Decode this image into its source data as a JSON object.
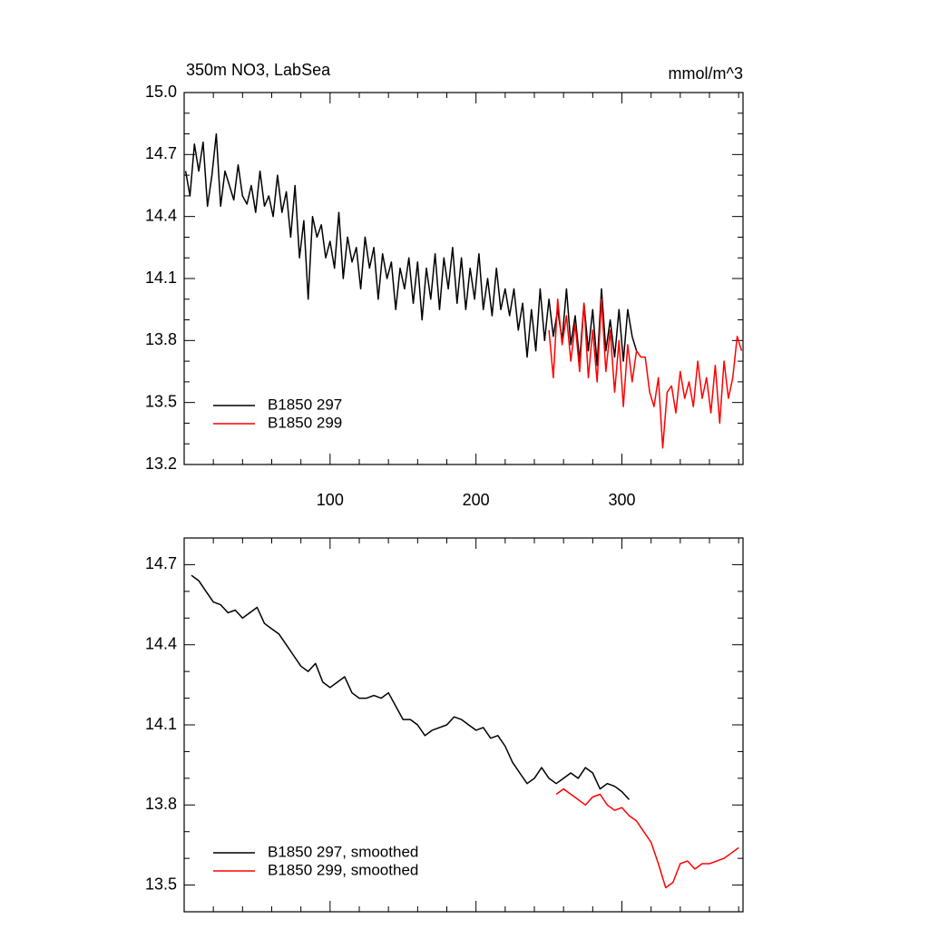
{
  "chart_data": [
    {
      "type": "line",
      "title": "350m NO3, LabSea",
      "units": "mmol/m^3",
      "xlim": [
        0,
        383
      ],
      "xticks": [
        100,
        200,
        300
      ],
      "xtick_labels": true,
      "ylim": [
        13.2,
        15.0
      ],
      "yticks": [
        13.2,
        13.5,
        13.8,
        14.1,
        14.4,
        14.7,
        {
          "value": 15,
          "label": "15.0"
        }
      ],
      "legend": "lower left",
      "series": [
        {
          "name": "B1850 297",
          "color": "#000000",
          "x": [
            1,
            4,
            7,
            10,
            13,
            16,
            19,
            22,
            25,
            28,
            31,
            34,
            37,
            40,
            43,
            46,
            49,
            52,
            55,
            58,
            61,
            64,
            67,
            70,
            73,
            76,
            79,
            82,
            85,
            88,
            91,
            94,
            97,
            100,
            103,
            106,
            109,
            112,
            115,
            118,
            121,
            124,
            127,
            130,
            133,
            136,
            139,
            142,
            145,
            148,
            151,
            154,
            157,
            160,
            163,
            166,
            169,
            172,
            175,
            178,
            181,
            184,
            187,
            190,
            193,
            196,
            199,
            202,
            205,
            208,
            211,
            214,
            217,
            220,
            223,
            226,
            229,
            232,
            235,
            238,
            241,
            244,
            247,
            250,
            253,
            256,
            259,
            262,
            265,
            268,
            271,
            274,
            277,
            280,
            283,
            286,
            289,
            292,
            295,
            298,
            301,
            304,
            307,
            310
          ],
          "values": [
            14.62,
            14.5,
            14.75,
            14.62,
            14.76,
            14.45,
            14.6,
            14.8,
            14.45,
            14.62,
            14.55,
            14.48,
            14.65,
            14.5,
            14.46,
            14.55,
            14.42,
            14.62,
            14.45,
            14.5,
            14.4,
            14.6,
            14.42,
            14.52,
            14.3,
            14.55,
            14.2,
            14.38,
            14.0,
            14.4,
            14.3,
            14.36,
            14.2,
            14.28,
            14.15,
            14.42,
            14.1,
            14.3,
            14.18,
            14.25,
            14.05,
            14.3,
            14.15,
            14.25,
            14.0,
            14.22,
            14.1,
            14.18,
            13.95,
            14.15,
            14.05,
            14.2,
            13.98,
            14.18,
            13.9,
            14.15,
            14.0,
            14.22,
            13.95,
            14.2,
            14.05,
            14.25,
            13.98,
            14.2,
            13.95,
            14.15,
            14.0,
            14.22,
            13.95,
            14.1,
            13.92,
            14.15,
            13.95,
            14.05,
            13.92,
            14.05,
            13.85,
            13.98,
            13.72,
            13.95,
            13.75,
            14.05,
            13.8,
            14.0,
            13.82,
            13.95,
            13.8,
            14.05,
            13.78,
            13.92,
            13.7,
            13.98,
            13.75,
            13.95,
            13.68,
            14.05,
            13.75,
            13.9,
            13.72,
            13.95,
            13.7,
            13.95,
            13.82,
            13.75
          ]
        },
        {
          "name": "B1850 299",
          "color": "#ff0000",
          "x": [
            250,
            253,
            256,
            259,
            262,
            265,
            268,
            271,
            274,
            277,
            280,
            283,
            286,
            289,
            292,
            295,
            298,
            301,
            304,
            307,
            310,
            313,
            316,
            319,
            322,
            325,
            328,
            331,
            334,
            337,
            340,
            343,
            346,
            349,
            352,
            355,
            358,
            361,
            364,
            367,
            370,
            373,
            376,
            379,
            382
          ],
          "values": [
            13.85,
            13.62,
            14.0,
            13.78,
            13.92,
            13.7,
            13.88,
            13.65,
            13.98,
            13.62,
            13.85,
            13.6,
            14.0,
            13.65,
            13.85,
            13.55,
            13.8,
            13.48,
            13.78,
            13.6,
            13.75,
            13.72,
            13.72,
            13.55,
            13.48,
            13.62,
            13.28,
            13.55,
            13.58,
            13.45,
            13.65,
            13.52,
            13.6,
            13.48,
            13.7,
            13.52,
            13.62,
            13.45,
            13.68,
            13.4,
            13.7,
            13.52,
            13.62,
            13.82,
            13.75
          ]
        }
      ]
    },
    {
      "type": "line",
      "xlim": [
        0,
        383
      ],
      "xticks": [
        100,
        200,
        300
      ],
      "xtick_labels": false,
      "ylim": [
        13.4,
        14.8
      ],
      "yticks": [
        13.5,
        13.8,
        14.1,
        14.4,
        14.7
      ],
      "legend": "lower left",
      "series": [
        {
          "name": "B1850 297, smoothed",
          "color": "#000000",
          "x": [
            5,
            10,
            15,
            20,
            25,
            30,
            35,
            40,
            45,
            50,
            55,
            60,
            65,
            70,
            75,
            80,
            85,
            90,
            95,
            100,
            105,
            110,
            115,
            120,
            125,
            130,
            135,
            140,
            145,
            150,
            155,
            160,
            165,
            170,
            175,
            180,
            185,
            190,
            195,
            200,
            205,
            210,
            215,
            220,
            225,
            230,
            235,
            240,
            245,
            250,
            255,
            260,
            265,
            270,
            275,
            280,
            285,
            290,
            295,
            300,
            305
          ],
          "values": [
            14.66,
            14.64,
            14.6,
            14.56,
            14.55,
            14.52,
            14.53,
            14.5,
            14.52,
            14.54,
            14.48,
            14.46,
            14.44,
            14.4,
            14.36,
            14.32,
            14.3,
            14.33,
            14.26,
            14.24,
            14.26,
            14.28,
            14.22,
            14.2,
            14.2,
            14.21,
            14.2,
            14.22,
            14.17,
            14.12,
            14.12,
            14.1,
            14.06,
            14.08,
            14.09,
            14.1,
            14.13,
            14.12,
            14.1,
            14.08,
            14.09,
            14.05,
            14.06,
            14.02,
            13.96,
            13.92,
            13.88,
            13.9,
            13.94,
            13.9,
            13.88,
            13.9,
            13.92,
            13.9,
            13.94,
            13.92,
            13.86,
            13.88,
            13.87,
            13.85,
            13.82
          ]
        },
        {
          "name": "B1850 299, smoothed",
          "color": "#ff0000",
          "x": [
            255,
            260,
            265,
            270,
            275,
            280,
            285,
            290,
            295,
            300,
            305,
            310,
            315,
            320,
            325,
            330,
            335,
            340,
            345,
            350,
            355,
            360,
            365,
            370,
            375,
            380
          ],
          "values": [
            13.84,
            13.86,
            13.84,
            13.82,
            13.8,
            13.83,
            13.84,
            13.8,
            13.78,
            13.79,
            13.76,
            13.74,
            13.7,
            13.66,
            13.58,
            13.49,
            13.51,
            13.58,
            13.59,
            13.56,
            13.58,
            13.58,
            13.59,
            13.6,
            13.62,
            13.64
          ]
        }
      ]
    }
  ]
}
